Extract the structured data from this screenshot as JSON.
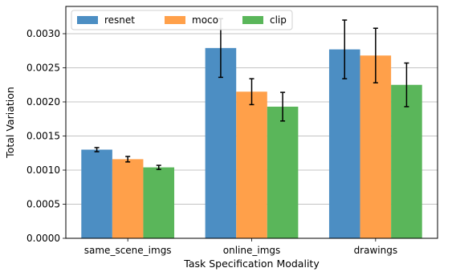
{
  "chart_data": {
    "type": "bar",
    "title": "",
    "xlabel": "Task Specification Modality",
    "ylabel": "Total Variation",
    "categories": [
      "same_scene_imgs",
      "online_imgs",
      "drawings"
    ],
    "ylim": [
      0,
      0.0034
    ],
    "yticks": [
      0.0,
      0.0005,
      0.001,
      0.0015,
      0.002,
      0.0025,
      0.003
    ],
    "ytick_labels": [
      "0.0000",
      "0.0005",
      "0.0010",
      "0.0015",
      "0.0020",
      "0.0025",
      "0.0030"
    ],
    "grid": "y",
    "legend_position": "top-left",
    "series": [
      {
        "name": "resnet",
        "color": "#4c8ec3",
        "values": [
          0.0013,
          0.00279,
          0.00277
        ],
        "errors": [
          3e-05,
          0.00043,
          0.00043
        ]
      },
      {
        "name": "moco",
        "color": "#ffa04a",
        "values": [
          0.00116,
          0.00215,
          0.00268
        ],
        "errors": [
          4e-05,
          0.00019,
          0.0004
        ]
      },
      {
        "name": "clip",
        "color": "#5ab65a",
        "values": [
          0.00104,
          0.00193,
          0.00225
        ],
        "errors": [
          3e-05,
          0.00021,
          0.00032
        ]
      }
    ]
  }
}
